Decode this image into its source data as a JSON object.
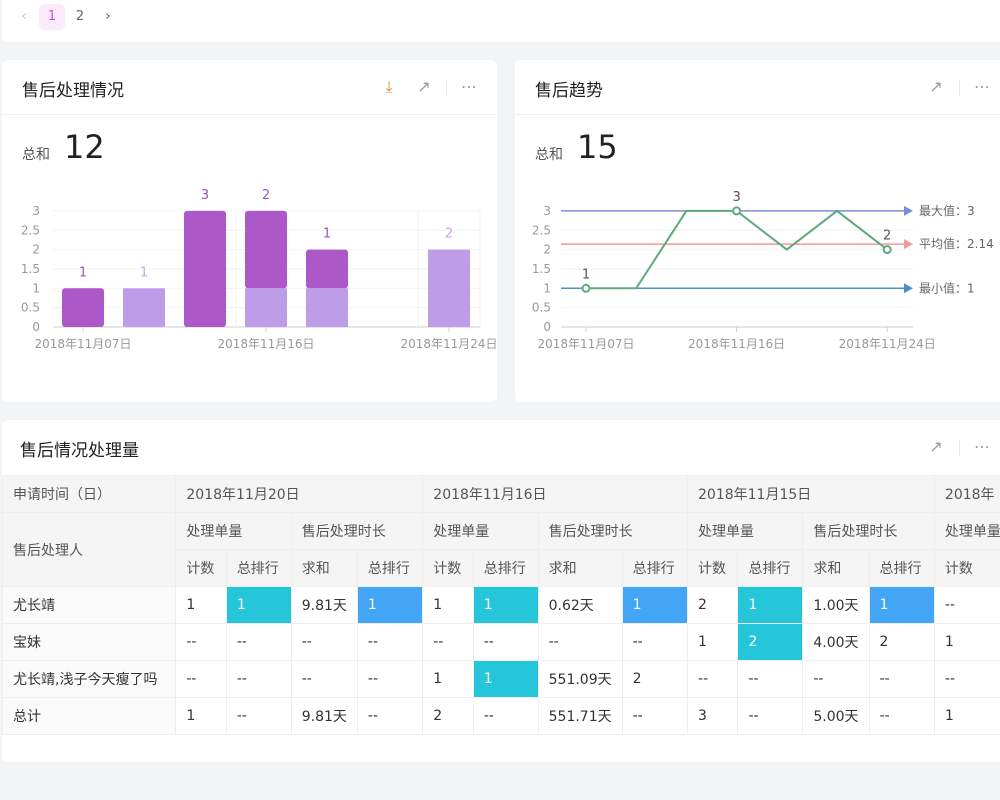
{
  "pagination": {
    "prev_icon": "chevron-left-icon",
    "next_icon": "chevron-right-icon",
    "pages": [
      "1",
      "2"
    ],
    "current": "1"
  },
  "card1": {
    "title": "售后处理情况",
    "sum_label": "总和",
    "sum_value": "12",
    "icons": [
      "download-icon",
      "external-link-icon",
      "more-icon"
    ]
  },
  "card2": {
    "title": "售后趋势",
    "sum_label": "总和",
    "sum_value": "15",
    "icons": [
      "external-link-icon",
      "more-icon"
    ]
  },
  "card3": {
    "title": "售后情况处理量",
    "icons": [
      "external-link-icon",
      "more-icon"
    ]
  },
  "chart_data": [
    {
      "type": "bar",
      "stacked": true,
      "categories": [
        "2018年11月07日",
        "",
        "",
        "2018年11月16日",
        "",
        "",
        "2018年11月24日"
      ],
      "x_tick_labels": [
        "2018年11月07日",
        "2018年11月16日",
        "2018年11月24日"
      ],
      "ylim": [
        0,
        3
      ],
      "yticks": [
        "0",
        "0.5",
        "1",
        "1.5",
        "2",
        "2.5",
        "3"
      ],
      "grid": true,
      "series": [
        {
          "values": [
            0,
            1,
            0,
            1,
            1,
            0,
            2
          ],
          "color": "#bd9de8"
        },
        {
          "values": [
            1,
            0,
            3,
            2,
            1,
            0,
            0
          ],
          "color": "#ad58c8"
        }
      ]
    },
    {
      "type": "line",
      "categories": [
        "2018年11月07日",
        "",
        "",
        "2018年11月16日",
        "",
        "",
        "2018年11月24日"
      ],
      "x_tick_labels": [
        "2018年11月07日",
        "2018年11月16日",
        "2018年11月24日"
      ],
      "ylim": [
        0,
        3
      ],
      "yticks": [
        "0",
        "0.5",
        "1",
        "1.5",
        "2",
        "2.5",
        "3"
      ],
      "values": [
        1,
        1,
        3,
        3,
        2,
        3,
        2
      ],
      "color": "#5daa7e",
      "labeled_points": [
        0,
        3,
        6
      ],
      "mark_lines": [
        {
          "label": "最大值：3",
          "value": 3,
          "color": "#7b8ed8"
        },
        {
          "label": "平均值：2.14",
          "value": 2.14,
          "color": "#f09a9a"
        },
        {
          "label": "最小值：1",
          "value": 1,
          "color": "#4a90c0"
        }
      ]
    }
  ],
  "table": {
    "corner_top": "申请时间（日）",
    "corner_bottom": "售后处理人",
    "dates": [
      "2018年11月20日",
      "2018年11月16日",
      "2018年11月15日",
      "2018年"
    ],
    "groups": [
      "处理单量",
      "售后处理时长"
    ],
    "subcols": [
      "计数",
      "总排行",
      "求和",
      "总排行"
    ],
    "rows": [
      {
        "name": "尤长靖",
        "cells": [
          "1",
          "1",
          "9.81天",
          "1",
          "1",
          "1",
          "0.62天",
          "1",
          "2",
          "1",
          "1.00天",
          "1",
          "--"
        ]
      },
      {
        "name": "宝妹",
        "cells": [
          "--",
          "--",
          "--",
          "--",
          "--",
          "--",
          "--",
          "--",
          "1",
          "2",
          "4.00天",
          "2",
          "1"
        ]
      },
      {
        "name": "尤长靖,浅子今天瘦了吗",
        "cells": [
          "--",
          "--",
          "--",
          "--",
          "1",
          "1",
          "551.09天",
          "2",
          "--",
          "--",
          "--",
          "--",
          "--"
        ]
      },
      {
        "name": "总计",
        "cells": [
          "1",
          "--",
          "9.81天",
          "--",
          "2",
          "--",
          "551.71天",
          "--",
          "3",
          "--",
          "5.00天",
          "--",
          "1"
        ]
      }
    ],
    "highlight_colors": {
      "count_rank": "#26c6da",
      "duration_rank": "#42a5f5"
    }
  }
}
